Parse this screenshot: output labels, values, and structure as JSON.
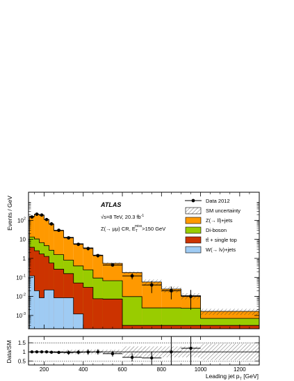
{
  "chart_data": [
    {
      "type": "bar",
      "stacked": true,
      "histogram": true,
      "log_y": true,
      "title": "",
      "ylabel": "Events / GeV",
      "xlim": [
        120,
        1300
      ],
      "ylim": [
        0.0002,
        3000
      ],
      "x_ticks": [
        200,
        400,
        600,
        800,
        1000,
        1200
      ],
      "y_ticks": [
        {
          "value": 0.001,
          "base": "10",
          "exp": "-3"
        },
        {
          "value": 0.01,
          "base": "10",
          "exp": "-2"
        },
        {
          "value": 0.1,
          "base": "10",
          "exp": "-1"
        },
        {
          "value": 1,
          "base": "1",
          "exp": ""
        },
        {
          "value": 10,
          "base": "10",
          "exp": ""
        },
        {
          "value": 100,
          "base": "10",
          "exp": "2"
        }
      ],
      "bin_edges": [
        125,
        150,
        175,
        200,
        225,
        250,
        300,
        350,
        400,
        450,
        500,
        600,
        700,
        800,
        900,
        1000,
        1300
      ],
      "series": [
        {
          "name": "W(→ lν)+jets",
          "color": "#9fcbf3",
          "values": [
            0.12,
            0.02,
            0.0085,
            0.022,
            0.022,
            0.0085,
            0.0085,
            0.0012,
            0.0001,
            0.0001,
            0.0001,
            0.0001,
            0.0001,
            0.0001,
            0.0001,
            0.0001
          ]
        },
        {
          "name": "tt̄ + single top",
          "color": "#cc3300",
          "values": [
            3.7,
            2.5,
            1.7,
            1.25,
            0.55,
            0.26,
            0.15,
            0.05,
            0.03,
            0.0075,
            0.0072,
            0.0002,
            0.0002,
            0.0002,
            0.0002,
            0.0002
          ]
        },
        {
          "name": "Di-boson",
          "color": "#99cc00",
          "values": [
            9.5,
            8.0,
            5.0,
            3.4,
            2.1,
            1.3,
            0.65,
            0.35,
            0.22,
            0.085,
            0.06,
            0.0095,
            0.0022,
            0.0022,
            0.0021,
            0.0004
          ]
        },
        {
          "name": "Z(→ ll)+jets",
          "color": "#ff9900",
          "values": [
            150,
            200,
            180,
            105,
            60,
            27,
            12,
            5.5,
            3.3,
            1.4,
            0.48,
            0.17,
            0.055,
            0.022,
            0.0085,
            0.00095
          ]
        }
      ],
      "data": {
        "name": "Data 2012",
        "x": [
          137.5,
          162.5,
          187.5,
          212.5,
          237.5,
          275,
          325,
          375,
          425,
          475,
          550,
          650,
          750,
          850,
          950,
          1150
        ],
        "y": [
          150,
          210,
          190,
          110,
          65,
          30,
          12,
          5.5,
          3.3,
          1.4,
          0.45,
          0.12,
          0.04,
          0.02,
          0.01,
          null
        ],
        "yerr_low": [
          10,
          15,
          14,
          10,
          7,
          3.5,
          2,
          1,
          0.7,
          0.3,
          0.08,
          0.04,
          0.025,
          0.013,
          0.008,
          null
        ],
        "yerr_high": [
          10,
          15,
          14,
          10,
          7,
          3.5,
          2,
          1,
          0.7,
          0.3,
          0.08,
          0.04,
          0.025,
          0.013,
          0.012,
          null
        ]
      },
      "uncertainty": {
        "name": "SM uncertainty"
      },
      "legend": "top-right",
      "annotations": {
        "experiment": "ATLAS",
        "energy": "√s=8 TeV, 20.3 fb",
        "energy_sup": "-1",
        "region_a": "Z(→ μμ) CR, E",
        "region_sub": "T",
        "region_sup": "miss",
        "region_b": ">150 GeV"
      }
    },
    {
      "type": "scatter",
      "ylabel": "Data/SM",
      "xlabel": "Leading jet p",
      "xlabel_sub": "T",
      "xlabel_unit": " [GeV]",
      "xlim": [
        120,
        1300
      ],
      "ylim": [
        0.28,
        1.85
      ],
      "y_ticks": [
        {
          "value": 0.5,
          "label": "0.5"
        },
        {
          "value": 1,
          "label": "1"
        },
        {
          "value": 1.5,
          "label": "1.5"
        }
      ],
      "x": [
        137.5,
        162.5,
        187.5,
        212.5,
        237.5,
        275,
        325,
        375,
        425,
        475,
        550,
        650,
        750,
        850,
        950
      ],
      "y": [
        1.0,
        1.0,
        1.0,
        1.0,
        0.98,
        0.97,
        0.96,
        0.98,
        0.99,
        1.0,
        0.9,
        0.7,
        0.67,
        1.0,
        1.2
      ],
      "yerr": [
        0.05,
        0.05,
        0.05,
        0.06,
        0.07,
        0.08,
        0.12,
        0.12,
        0.15,
        0.15,
        0.16,
        0.22,
        0.35,
        0.9,
        1.2
      ]
    }
  ]
}
